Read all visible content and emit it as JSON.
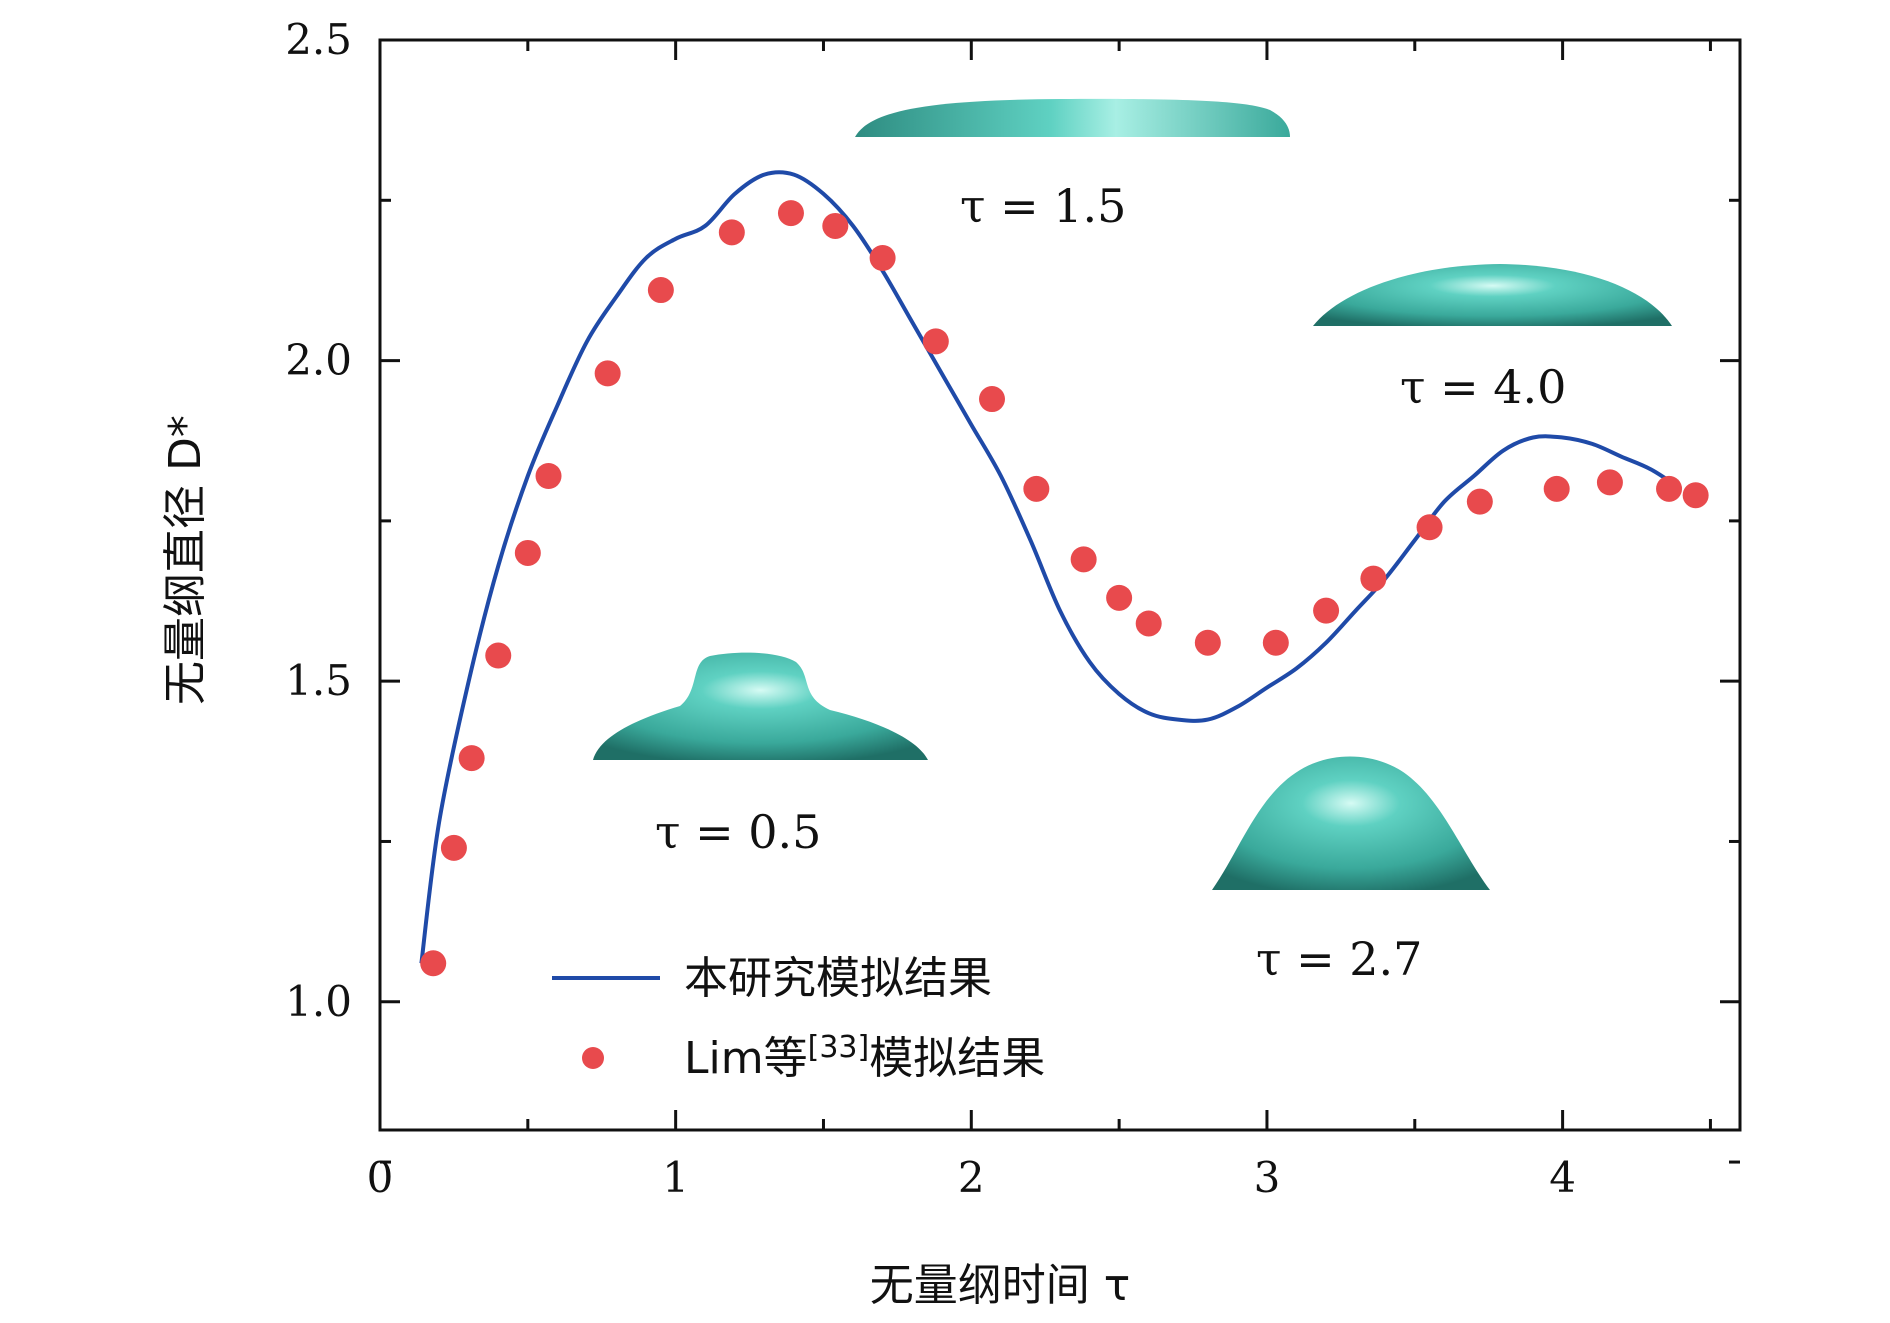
{
  "chart_data": {
    "type": "line",
    "xlabel": "无量纲时间 τ",
    "ylabel": "无量纲直径 D*",
    "xlim": [
      0,
      4.6
    ],
    "ylim": [
      0.8,
      2.5
    ],
    "xticks": [
      0,
      1,
      2,
      3,
      4
    ],
    "xtick_labels": [
      "0",
      "1",
      "2",
      "3",
      "4"
    ],
    "yticks": [
      1.0,
      1.5,
      2.0,
      2.5
    ],
    "ytick_labels": [
      "1.0",
      "1.5",
      "2.0",
      "2.5"
    ],
    "series": [
      {
        "name": "本研究模拟结果",
        "kind": "line",
        "color": "#1f4aa8",
        "x": [
          0.14,
          0.2,
          0.3,
          0.4,
          0.5,
          0.6,
          0.7,
          0.8,
          0.9,
          1.0,
          1.1,
          1.2,
          1.3,
          1.4,
          1.5,
          1.6,
          1.7,
          1.8,
          1.9,
          2.0,
          2.1,
          2.2,
          2.3,
          2.4,
          2.5,
          2.6,
          2.7,
          2.8,
          2.9,
          3.0,
          3.1,
          3.2,
          3.3,
          3.4,
          3.5,
          3.6,
          3.7,
          3.8,
          3.9,
          4.0,
          4.1,
          4.2,
          4.3,
          4.4
        ],
        "y": [
          1.06,
          1.28,
          1.5,
          1.68,
          1.82,
          1.93,
          2.03,
          2.1,
          2.16,
          2.19,
          2.21,
          2.26,
          2.29,
          2.29,
          2.26,
          2.21,
          2.14,
          2.06,
          1.98,
          1.9,
          1.82,
          1.72,
          1.61,
          1.53,
          1.48,
          1.45,
          1.44,
          1.44,
          1.46,
          1.49,
          1.52,
          1.56,
          1.61,
          1.66,
          1.72,
          1.78,
          1.82,
          1.86,
          1.88,
          1.88,
          1.87,
          1.85,
          1.83,
          1.8
        ]
      },
      {
        "name": "Lim等[33]模拟结果",
        "kind": "scatter",
        "color": "#e84a4d",
        "x": [
          0.18,
          0.25,
          0.31,
          0.4,
          0.5,
          0.57,
          0.77,
          0.95,
          1.19,
          1.39,
          1.54,
          1.7,
          1.88,
          2.07,
          2.22,
          2.38,
          2.5,
          2.6,
          2.8,
          3.03,
          3.2,
          3.36,
          3.55,
          3.72,
          3.98,
          4.16,
          4.36,
          4.45
        ],
        "y": [
          1.06,
          1.24,
          1.38,
          1.54,
          1.7,
          1.82,
          1.98,
          2.11,
          2.2,
          2.23,
          2.21,
          2.16,
          2.03,
          1.94,
          1.8,
          1.69,
          1.63,
          1.59,
          1.56,
          1.56,
          1.61,
          1.66,
          1.74,
          1.78,
          1.8,
          1.81,
          1.8,
          1.79
        ]
      }
    ],
    "legend": {
      "position": "bottom-center",
      "line_label": "本研究模拟结果",
      "scatter_label_main": "Lim等",
      "scatter_label_ref": "[33]",
      "scatter_label_tail": "模拟结果"
    },
    "annotations": [
      {
        "text": "τ = 1.5",
        "shape": "flat-disk"
      },
      {
        "text": "τ = 4.0",
        "shape": "dome-wide"
      },
      {
        "text": "τ = 0.5",
        "shape": "hat"
      },
      {
        "text": "τ = 2.7",
        "shape": "dome-tall"
      }
    ]
  },
  "colors": {
    "droplet": "#3fb3a5",
    "droplet_dark": "#23786f",
    "droplet_light": "#b8ece3",
    "axis": "#111111"
  }
}
